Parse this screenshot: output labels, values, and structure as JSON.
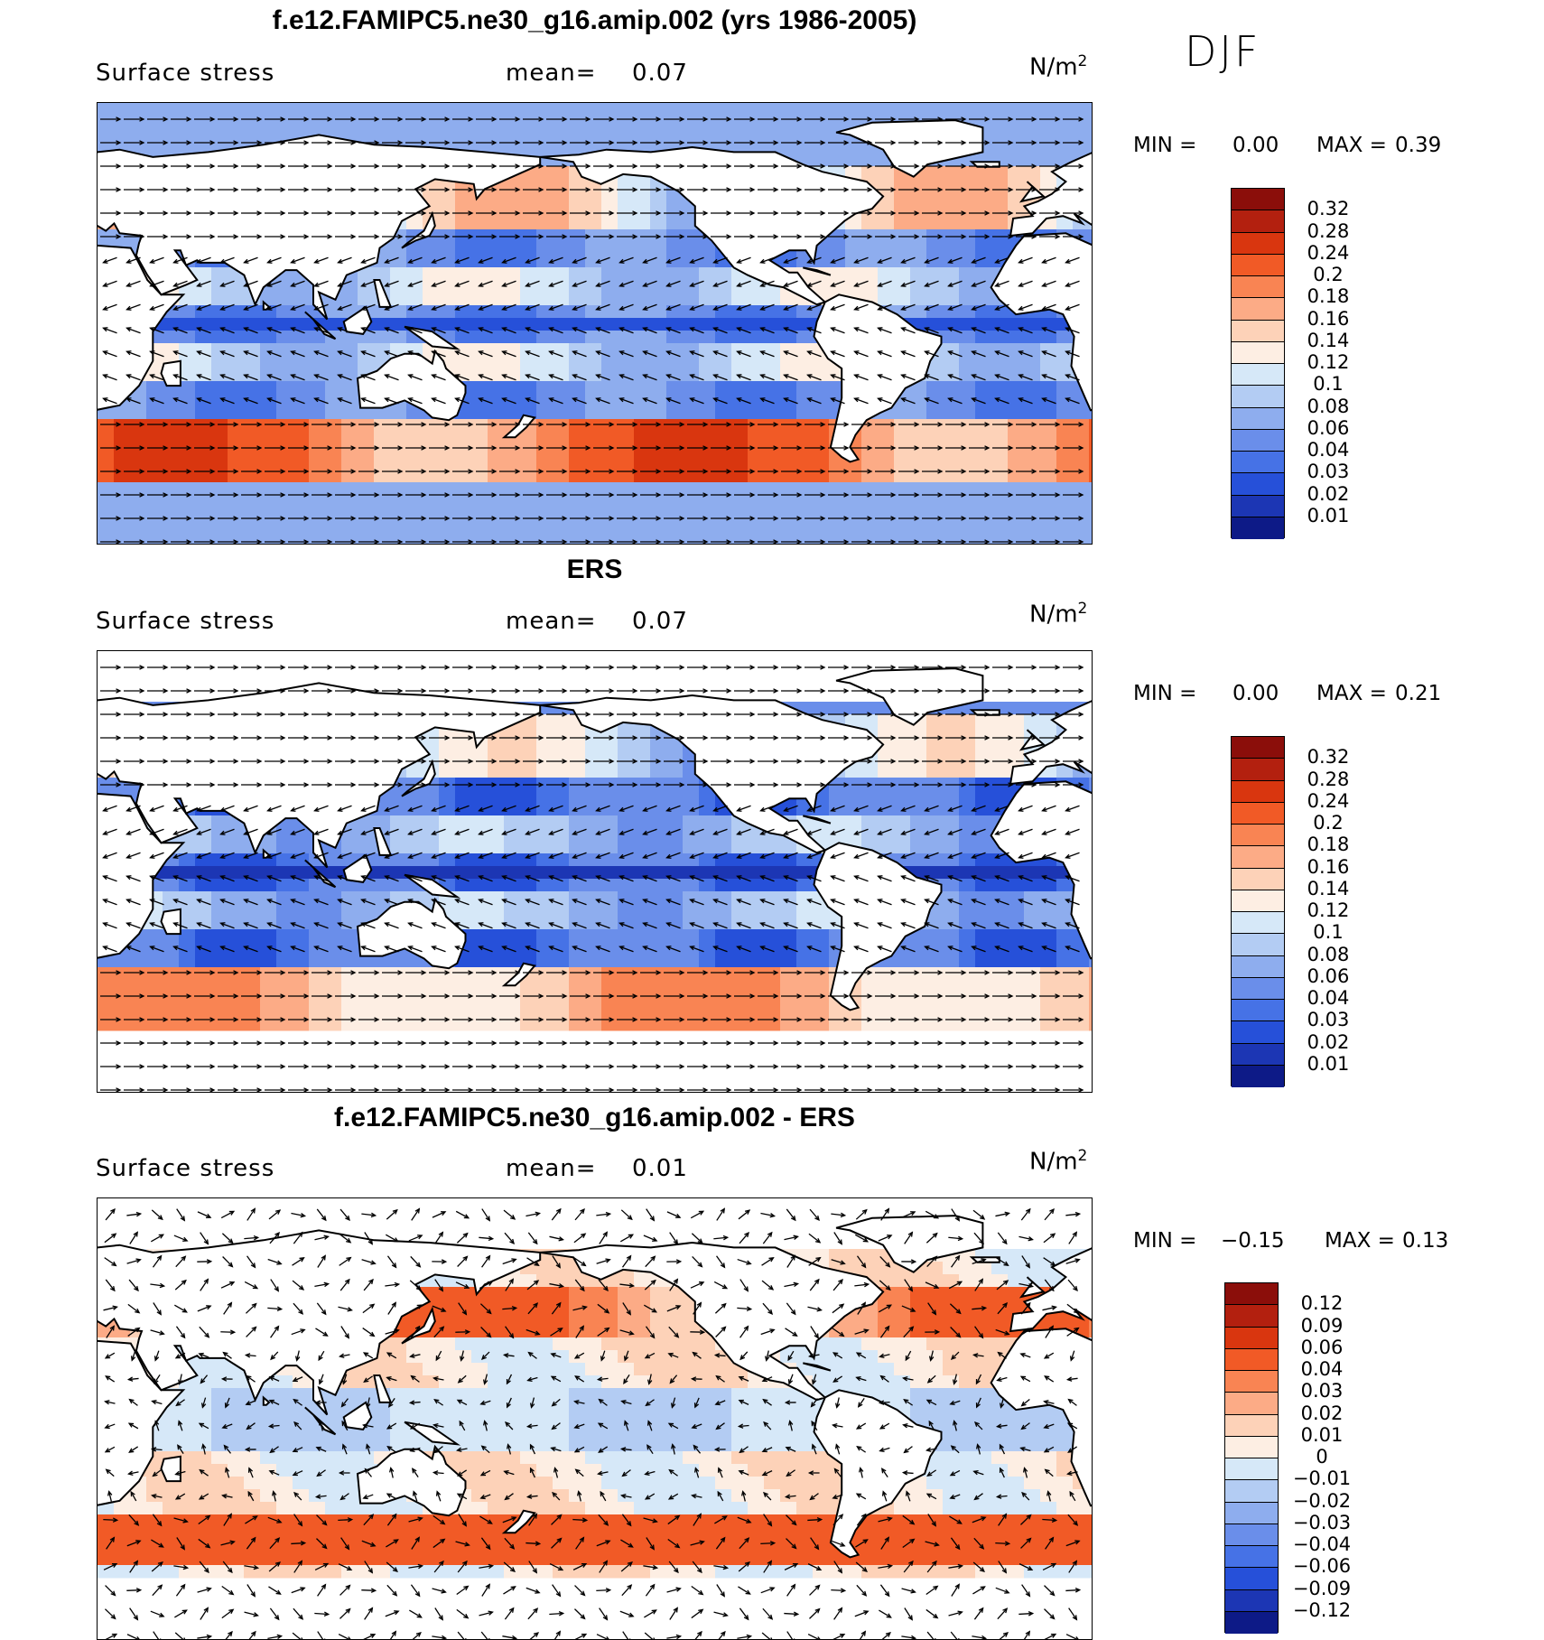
{
  "season": "DJF",
  "panels": [
    {
      "title": "f.e12.FAMIPC5.ne30_g16.amip.002 (yrs 1986-2005)",
      "variable": "Surface stress",
      "mean_label": "mean=",
      "mean_value": "0.07",
      "units": "N/m",
      "units_exp": "2",
      "min_label": "MIN =",
      "min_value": "0.00",
      "max_label": "MAX =",
      "max_value": "0.39",
      "colorbar_labels": [
        "0.32",
        "0.28",
        "0.24",
        "0.2",
        "0.18",
        "0.16",
        "0.14",
        "0.12",
        "0.1",
        "0.08",
        "0.06",
        "0.04",
        "0.03",
        "0.02",
        "0.01"
      ],
      "colorbar_colors": [
        "#8b0e0a",
        "#b3200f",
        "#d9360f",
        "#f15a26",
        "#f98453",
        "#fcab86",
        "#fdd2b8",
        "#fdeee3",
        "#d6e8f8",
        "#b3ccf3",
        "#8eadee",
        "#6a8eea",
        "#4672e6",
        "#2650d9",
        "#1c36b4",
        "#0d1a87"
      ],
      "field": "model"
    },
    {
      "title": "ERS",
      "variable": "Surface stress",
      "mean_label": "mean=",
      "mean_value": "0.07",
      "units": "N/m",
      "units_exp": "2",
      "min_label": "MIN =",
      "min_value": "0.00",
      "max_label": "MAX =",
      "max_value": "0.21",
      "colorbar_labels": [
        "0.32",
        "0.28",
        "0.24",
        "0.2",
        "0.18",
        "0.16",
        "0.14",
        "0.12",
        "0.1",
        "0.08",
        "0.06",
        "0.04",
        "0.03",
        "0.02",
        "0.01"
      ],
      "colorbar_colors": [
        "#8b0e0a",
        "#b3200f",
        "#d9360f",
        "#f15a26",
        "#f98453",
        "#fcab86",
        "#fdd2b8",
        "#fdeee3",
        "#d6e8f8",
        "#b3ccf3",
        "#8eadee",
        "#6a8eea",
        "#4672e6",
        "#2650d9",
        "#1c36b4",
        "#0d1a87"
      ],
      "field": "obs"
    },
    {
      "title": "f.e12.FAMIPC5.ne30_g16.amip.002 - ERS",
      "variable": "Surface stress",
      "mean_label": "mean=",
      "mean_value": "0.01",
      "units": "N/m",
      "units_exp": "2",
      "min_label": "MIN =",
      "min_value": "−0.15",
      "max_label": "MAX =",
      "max_value": "0.13",
      "colorbar_labels": [
        "0.12",
        "0.09",
        "0.06",
        "0.04",
        "0.03",
        "0.02",
        "0.01",
        "0",
        "−0.01",
        "−0.02",
        "−0.03",
        "−0.04",
        "−0.06",
        "−0.09",
        "−0.12"
      ],
      "colorbar_colors": [
        "#8b0e0a",
        "#b3200f",
        "#d9360f",
        "#f15a26",
        "#f98453",
        "#fcab86",
        "#fdd2b8",
        "#fdeee3",
        "#d6e8f8",
        "#b3ccf3",
        "#8eadee",
        "#6a8eea",
        "#4672e6",
        "#2650d9",
        "#1c36b4",
        "#0d1a87"
      ],
      "field": "diff"
    }
  ]
}
